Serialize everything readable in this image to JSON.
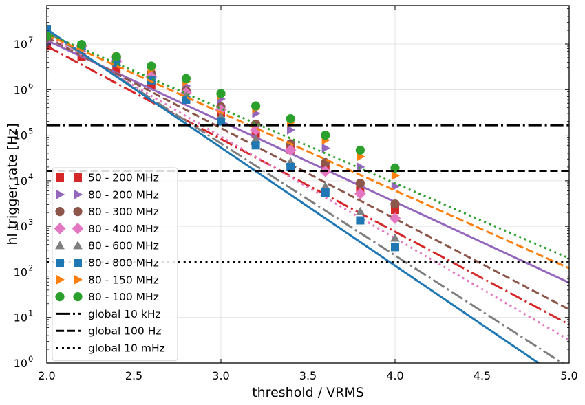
{
  "chart_data": {
    "type": "line",
    "xlabel": "threshold / VRMS",
    "ylabel": "hl trigger rate [Hz]",
    "xlim": [
      2.0,
      5.0
    ],
    "ylim": [
      1,
      70000000
    ],
    "yscale": "log",
    "grid": true,
    "legend_placement": "lower-left",
    "x_ticks": [
      "2.0",
      "2.5",
      "3.0",
      "3.5",
      "4.0",
      "4.5",
      "5.0"
    ],
    "y_ticks": [
      {
        "base": "10",
        "exp": "0"
      },
      {
        "base": "10",
        "exp": "1"
      },
      {
        "base": "10",
        "exp": "2"
      },
      {
        "base": "10",
        "exp": "3"
      },
      {
        "base": "10",
        "exp": "4"
      },
      {
        "base": "10",
        "exp": "5"
      },
      {
        "base": "10",
        "exp": "6"
      },
      {
        "base": "10",
        "exp": "7"
      }
    ],
    "x": [
      2.0,
      2.2,
      2.4,
      2.6,
      2.8,
      3.0,
      3.2,
      3.4,
      3.6,
      3.8,
      4.0
    ],
    "series": [
      {
        "name": "50 - 200 MHz",
        "color": "#d62728",
        "marker": "square",
        "line": "dashdot",
        "values": [
          9000000,
          5200000,
          2600000,
          1250000,
          600000,
          310000,
          110000,
          48000,
          18000,
          6500,
          2300
        ],
        "fit": [
          [
            2.0,
            9000000
          ],
          [
            5.0,
            7
          ]
        ]
      },
      {
        "name": "80 - 200 MHz",
        "color": "#9467bd",
        "marker": "triangle-right",
        "line": "solid",
        "values": [
          10000000,
          7000000,
          4600000,
          2300000,
          1200000,
          620000,
          300000,
          130000,
          52000,
          20000,
          7500
        ],
        "fit": [
          [
            2.0,
            12000000
          ],
          [
            5.0,
            58
          ]
        ]
      },
      {
        "name": "80 - 300 MHz",
        "color": "#8c564b",
        "marker": "circle",
        "line": "dashed",
        "values": [
          14000000,
          9000000,
          5000000,
          2300000,
          950000,
          420000,
          175000,
          65000,
          25000,
          8800,
          3100
        ],
        "fit": [
          [
            2.0,
            14000000
          ],
          [
            5.0,
            15
          ]
        ]
      },
      {
        "name": "80 - 400 MHz",
        "color": "#e377c2",
        "marker": "diamond",
        "line": "dotted",
        "values": [
          16000000,
          9000000,
          4200000,
          1900000,
          850000,
          360000,
          130000,
          47000,
          16000,
          5200,
          1500
        ],
        "fit": [
          [
            2.0,
            16000000
          ],
          [
            5.0,
            3.2
          ]
        ]
      },
      {
        "name": "80 - 600 MHz",
        "color": "#7f7f7f",
        "marker": "triangle-up",
        "line": "dashdot",
        "values": [
          19000000,
          9000000,
          4000000,
          1700000,
          720000,
          260000,
          82000,
          26000,
          7500,
          2100,
          550
        ],
        "fit": [
          [
            2.0,
            19000000
          ],
          [
            5.0,
            0.8
          ]
        ]
      },
      {
        "name": "80 - 800 MHz",
        "color": "#1f77b4",
        "marker": "square",
        "line": "solid",
        "values": [
          21000000,
          9000000,
          3900000,
          1600000,
          600000,
          200000,
          60000,
          20000,
          5500,
          1350,
          350
        ],
        "fit": [
          [
            2.0,
            21000000
          ],
          [
            5.0,
            0.35
          ]
        ]
      },
      {
        "name": "80 - 150 MHz",
        "color": "#ff7f0e",
        "marker": "triangle-right",
        "line": "dashed",
        "values": [
          14000000,
          9500000,
          5200000,
          2800000,
          1500000,
          760000,
          380000,
          190000,
          78000,
          34000,
          13000
        ],
        "fit": [
          [
            2.0,
            16000000
          ],
          [
            5.0,
            120
          ]
        ]
      },
      {
        "name": "80 - 100 MHz",
        "color": "#2ca02c",
        "marker": "circle",
        "line": "dotted",
        "values": [
          15000000,
          9800000,
          5300000,
          3300000,
          1750000,
          820000,
          440000,
          230000,
          100000,
          47000,
          19000
        ],
        "fit": [
          [
            2.0,
            17000000
          ],
          [
            5.0,
            200
          ]
        ]
      },
      {
        "name": "global 10 kHz",
        "color": "#000000",
        "marker": "none",
        "line": "dashdot",
        "hline": 165000
      },
      {
        "name": "global 100 Hz",
        "color": "#000000",
        "marker": "none",
        "line": "dashed",
        "hline": 16500
      },
      {
        "name": "global 10 mHz",
        "color": "#000000",
        "marker": "none",
        "line": "dotted",
        "hline": 165
      }
    ]
  }
}
